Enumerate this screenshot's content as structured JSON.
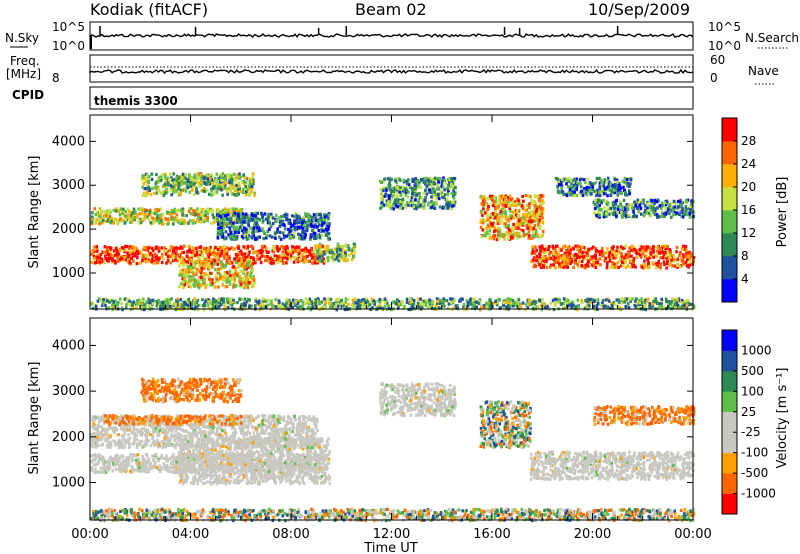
{
  "header": {
    "radar": "Kodiak (fitACF)",
    "beam": "Beam 02",
    "date": "10/Sep/2009"
  },
  "strip_panels": {
    "nsky_label": "N.Sky",
    "nsky_ticks": [
      "10^5",
      "10^0"
    ],
    "nsearch_label": "N.Search",
    "nsearch_ticks": [
      "10^5",
      "10^0"
    ],
    "freq_label": "Freq.",
    "freq_unit": "[MHz]",
    "freq_ticks": [
      "8"
    ],
    "nave_label": "Nave",
    "nave_ticks": [
      "60",
      "0"
    ],
    "cpid_label": "CPID",
    "cpid_value": "themis 3300"
  },
  "chart_data": [
    {
      "type": "heatmap",
      "name": "power",
      "xlabel": "Time UT",
      "ylabel": "Slant Range [km]",
      "xlim_hours": [
        0,
        24
      ],
      "ylim": [
        180,
        4600
      ],
      "yticks": [
        "1000",
        "2000",
        "3000",
        "4000"
      ],
      "colorbar": {
        "label": "Power [dB]",
        "ticks": [
          "28",
          "24",
          "20",
          "16",
          "12",
          "8",
          "4"
        ],
        "colors": [
          "#0000ff",
          "#2050a0",
          "#2e8a55",
          "#5fbf48",
          "#c7e040",
          "#ffb000",
          "#ff6600",
          "#ff0000"
        ]
      },
      "regions": [
        {
          "t0": 0.0,
          "t1": 9.3,
          "r0": 1250,
          "r1": 1650,
          "level": 0.85
        },
        {
          "t0": 9.0,
          "t1": 10.5,
          "r0": 1300,
          "r1": 1700,
          "level": 0.45
        },
        {
          "t0": 3.5,
          "t1": 6.5,
          "r0": 700,
          "r1": 1300,
          "level": 0.65
        },
        {
          "t0": 0.0,
          "t1": 6.0,
          "r0": 2150,
          "r1": 2500,
          "level": 0.55
        },
        {
          "t0": 5.0,
          "t1": 9.5,
          "r0": 1800,
          "r1": 2400,
          "level": 0.25
        },
        {
          "t0": 2.0,
          "t1": 6.5,
          "r0": 2800,
          "r1": 3300,
          "level": 0.45
        },
        {
          "t0": 11.5,
          "t1": 14.5,
          "r0": 2500,
          "r1": 3200,
          "level": 0.35
        },
        {
          "t0": 15.5,
          "t1": 18.0,
          "r0": 1800,
          "r1": 2800,
          "level": 0.7
        },
        {
          "t0": 17.5,
          "t1": 24.0,
          "r0": 1150,
          "r1": 1650,
          "level": 0.85
        },
        {
          "t0": 20.0,
          "t1": 24.0,
          "r0": 2300,
          "r1": 2700,
          "level": 0.3
        },
        {
          "t0": 18.5,
          "t1": 21.5,
          "r0": 2800,
          "r1": 3200,
          "level": 0.3
        },
        {
          "t0": 0.0,
          "t1": 24.0,
          "r0": 200,
          "r1": 450,
          "level": 0.4
        }
      ]
    },
    {
      "type": "heatmap",
      "name": "velocity",
      "xlabel": "Time UT",
      "ylabel": "Slant Range [km]",
      "xlim_hours": [
        0,
        24
      ],
      "ylim": [
        180,
        4600
      ],
      "yticks": [
        "1000",
        "2000",
        "3000",
        "4000"
      ],
      "xticks": [
        "00:00",
        "04:00",
        "08:00",
        "12:00",
        "16:00",
        "20:00",
        "00:00"
      ],
      "colorbar": {
        "label": "Velocity [m s⁻¹]",
        "ticks": [
          "1000",
          "500",
          "100",
          "25",
          "-25",
          "-100",
          "-500",
          "-1000"
        ],
        "colors": [
          "#ff0000",
          "#ff6600",
          "#ffa000",
          "#c8c8c0",
          "#c8c8c0",
          "#5fbf48",
          "#2e8a55",
          "#2050a0",
          "#0000ff"
        ]
      },
      "regions": [
        {
          "t0": 0.0,
          "t1": 9.3,
          "r0": 1250,
          "r1": 1650,
          "kind": "ground"
        },
        {
          "t0": 3.5,
          "t1": 9.5,
          "r0": 1000,
          "r1": 2000,
          "kind": "ground"
        },
        {
          "t0": 0.0,
          "t1": 9.0,
          "r0": 1800,
          "r1": 2500,
          "kind": "ground"
        },
        {
          "t0": 0.5,
          "t1": 6.0,
          "r0": 2300,
          "r1": 2500,
          "kind": "orange"
        },
        {
          "t0": 2.0,
          "t1": 6.0,
          "r0": 2800,
          "r1": 3300,
          "kind": "orange"
        },
        {
          "t0": 11.5,
          "t1": 14.5,
          "r0": 2500,
          "r1": 3200,
          "kind": "ground"
        },
        {
          "t0": 15.5,
          "t1": 17.5,
          "r0": 1800,
          "r1": 2800,
          "kind": "mixed"
        },
        {
          "t0": 17.5,
          "t1": 24.0,
          "r0": 1100,
          "r1": 1700,
          "kind": "ground"
        },
        {
          "t0": 20.0,
          "t1": 24.0,
          "r0": 2300,
          "r1": 2700,
          "kind": "orange"
        },
        {
          "t0": 0.0,
          "t1": 24.0,
          "r0": 200,
          "r1": 450,
          "kind": "mixed"
        }
      ]
    }
  ]
}
